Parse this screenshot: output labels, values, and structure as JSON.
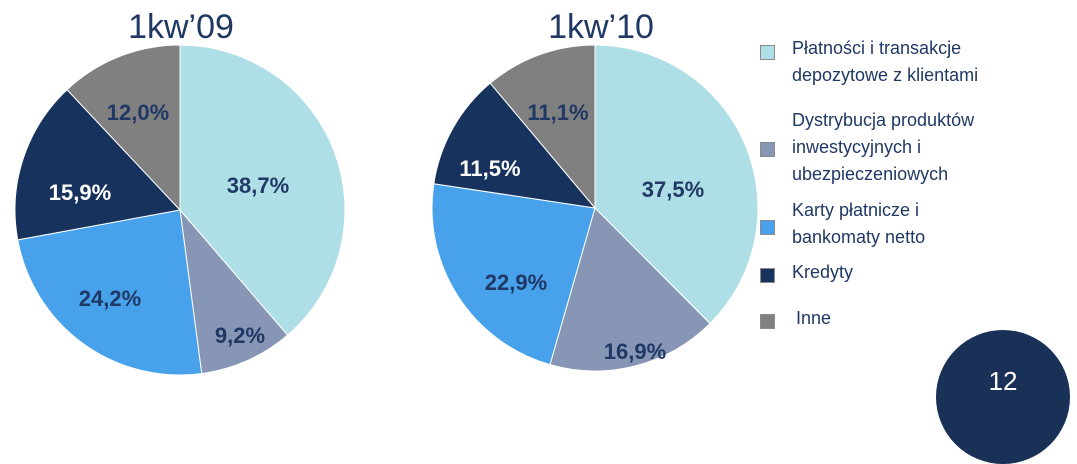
{
  "chart_data": [
    {
      "type": "pie",
      "title": "1kw’09",
      "slices": [
        {
          "label": "Płatności i transakcje depozytowe z klientami",
          "value": 38.7,
          "display": "38,7%",
          "color": "#afdfe6",
          "text_color": "#1f3864"
        },
        {
          "label": "Dystrybucja produktów inwestycyjnych i ubezpieczeniowych",
          "value": 9.2,
          "display": "9,2%",
          "color": "#8796b5",
          "text_color": "#1f3864"
        },
        {
          "label": "Karty płatnicze i bankomaty netto",
          "value": 24.2,
          "display": "24,2%",
          "color": "#47a1eb",
          "text_color": "#1f3864"
        },
        {
          "label": "Kredyty",
          "value": 15.9,
          "display": "15,9%",
          "color": "#17335d",
          "text_color": "#ffffff"
        },
        {
          "label": "Inne",
          "value": 12.0,
          "display": "12,0%",
          "color": "#808080",
          "text_color": "#1f3864"
        }
      ]
    },
    {
      "type": "pie",
      "title": "1kw’10",
      "slices": [
        {
          "label": "Płatności i transakcje depozytowe z klientami",
          "value": 37.5,
          "display": "37,5%",
          "color": "#afdfe6",
          "text_color": "#1f3864"
        },
        {
          "label": "Dystrybucja produktów inwestycyjnych i ubezpieczeniowych",
          "value": 16.9,
          "display": "16,9%",
          "color": "#8796b5",
          "text_color": "#1f3864"
        },
        {
          "label": "Karty płatnicze i bankomaty netto",
          "value": 22.9,
          "display": "22,9%",
          "color": "#47a1eb",
          "text_color": "#1f3864"
        },
        {
          "label": "Kredyty",
          "value": 11.5,
          "display": "11,5%",
          "color": "#17335d",
          "text_color": "#ffffff"
        },
        {
          "label": "Inne",
          "value": 11.1,
          "display": "11,1%",
          "color": "#808080",
          "text_color": "#1f3864"
        }
      ]
    }
  ],
  "legend": {
    "placement": "right",
    "items": [
      {
        "lines": [
          "Płatności i transakcje",
          "depozytowe z klientami"
        ],
        "color": "#afdfe6"
      },
      {
        "lines": [
          "Dystrybucja produktów",
          "inwestycyjnych i",
          "ubezpieczeniowych"
        ],
        "color": "#8796b5"
      },
      {
        "lines": [
          "Karty płatnicze i",
          "bankomaty netto"
        ],
        "color": "#47a1eb"
      },
      {
        "lines": [
          "Kredyty"
        ],
        "color": "#17335d"
      },
      {
        "lines": [
          "Inne"
        ],
        "color": "#808080"
      }
    ]
  },
  "page_number": "12"
}
